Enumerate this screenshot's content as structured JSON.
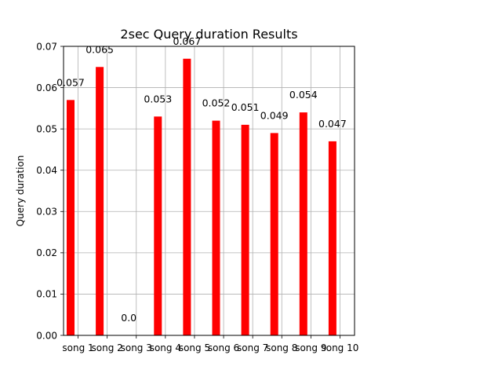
{
  "chart_data": {
    "type": "bar",
    "title": "2sec Query duration Results",
    "xlabel": "",
    "ylabel": "Query duration",
    "categories": [
      "song 1",
      "song 2",
      "song 3",
      "song 4",
      "song 5",
      "song 6",
      "song 7",
      "song 8",
      "song 9",
      "song 10"
    ],
    "values": [
      0.057,
      0.065,
      0.0,
      0.053,
      0.067,
      0.052,
      0.051,
      0.049,
      0.054,
      0.047
    ],
    "value_labels": [
      "0.057",
      "0.065",
      "0.0",
      "0.053",
      "0.067",
      "0.052",
      "0.051",
      "0.049",
      "0.054",
      "0.047"
    ],
    "ylim": [
      0,
      0.07
    ],
    "yticks": [
      "0.00",
      "0.01",
      "0.02",
      "0.03",
      "0.04",
      "0.05",
      "0.06",
      "0.07"
    ],
    "bar_color": "#ff0000",
    "grid": true,
    "legend": "none"
  }
}
